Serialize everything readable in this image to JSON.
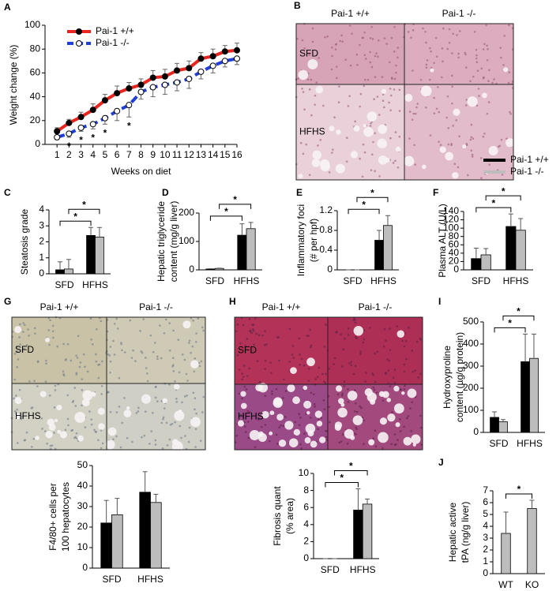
{
  "micrographs": [
    {
      "panel": "B",
      "columns": [
        "Pai-1 +/+",
        "Pai-1 -/-"
      ],
      "rows": [
        "SFD",
        "HFHS"
      ]
    },
    {
      "panel": "G",
      "columns": [
        "Pai-1 +/+",
        "Pai-1 -/-"
      ],
      "rows": [
        "SFD",
        "HFHS"
      ]
    },
    {
      "panel": "H",
      "columns": [
        "Pai-1 +/+",
        "Pai-1 -/-"
      ],
      "rows": [
        "SFD",
        "HFHS"
      ]
    }
  ],
  "chart_data": [
    {
      "panel": "A",
      "type": "line",
      "xlabel": "Weeks on diet",
      "ylabel": [
        "Weight change (%)"
      ],
      "x": [
        1,
        2,
        3,
        4,
        5,
        6,
        7,
        8,
        9,
        10,
        11,
        12,
        13,
        14,
        15,
        16
      ],
      "xlim": [
        0,
        16
      ],
      "xticks": [
        1,
        2,
        3,
        4,
        5,
        6,
        7,
        8,
        9,
        10,
        11,
        12,
        13,
        14,
        15,
        16
      ],
      "ylim": [
        0,
        100
      ],
      "yticks": [
        0,
        20,
        40,
        60,
        80,
        100
      ],
      "legend": "upper left",
      "series": [
        {
          "name": "Pai-1 +/+",
          "color": "#e8261f",
          "marker_fill": "#000000",
          "dashed": false,
          "error_direction": "up",
          "values": [
            11,
            18,
            23,
            29,
            37,
            43,
            47,
            50,
            56,
            57,
            62,
            64,
            72,
            74,
            78,
            79
          ],
          "errors": [
            3,
            3,
            4,
            5,
            5,
            6,
            5,
            5,
            6,
            6,
            6,
            6,
            5,
            6,
            5,
            6
          ]
        },
        {
          "name": "Pai-1 -/-",
          "color": "#1f3fd6",
          "marker_fill": "#ffffff",
          "dashed": true,
          "error_direction": "down",
          "values": [
            6,
            9,
            14,
            17,
            22,
            28,
            33,
            44,
            48,
            50,
            52,
            55,
            61,
            66,
            70,
            72
          ],
          "errors": [
            2,
            3,
            3,
            4,
            5,
            8,
            10,
            6,
            8,
            8,
            7,
            8,
            6,
            6,
            5,
            5
          ]
        }
      ],
      "annotations": [
        {
          "text": "*",
          "x": 2
        },
        {
          "text": "*",
          "x": 3
        },
        {
          "text": "*",
          "x": 4
        },
        {
          "text": "*",
          "x": 5
        },
        {
          "text": "*",
          "x": 7
        }
      ]
    },
    {
      "panel": "C",
      "type": "bar",
      "ylabel": [
        "Steatosis grade"
      ],
      "categories": [
        "SFD",
        "HFHS"
      ],
      "ylim": [
        0,
        4
      ],
      "yticks": [
        0,
        1,
        2,
        3,
        4
      ],
      "series": [
        {
          "color": "#000000",
          "values": [
            0.25,
            2.4
          ],
          "errors": [
            0.5,
            0.5
          ]
        },
        {
          "color": "#bdbdbd",
          "values": [
            0.3,
            2.3
          ],
          "errors": [
            0.6,
            0.6
          ]
        }
      ],
      "annotations": [
        "*",
        "*"
      ]
    },
    {
      "panel": "D",
      "type": "bar",
      "ylabel": [
        "Hepatic triglyceride",
        "content (mg/g liver)"
      ],
      "categories": [
        "SFD",
        "HFHS"
      ],
      "ylim": [
        0,
        200
      ],
      "yticks": [
        0,
        100,
        200
      ],
      "series": [
        {
          "color": "#000000",
          "values": [
            3,
            122
          ],
          "errors": [
            1,
            40
          ]
        },
        {
          "color": "#bdbdbd",
          "values": [
            5,
            145
          ],
          "errors": [
            1,
            22
          ]
        }
      ],
      "annotations": [
        "*",
        "*"
      ]
    },
    {
      "panel": "E",
      "type": "bar",
      "ylabel": [
        "Inflammatory foci",
        "(# per hpf)"
      ],
      "categories": [
        "SFD",
        "HFHS"
      ],
      "ylim": [
        0,
        1.2
      ],
      "yticks": [
        0,
        0.4,
        0.8,
        1.2
      ],
      "series": [
        {
          "color": "#000000",
          "values": [
            0,
            0.6
          ],
          "errors": [
            0,
            0.2
          ]
        },
        {
          "color": "#bdbdbd",
          "values": [
            0,
            0.9
          ],
          "errors": [
            0,
            0.2
          ]
        }
      ],
      "annotations": [
        "*",
        "*"
      ]
    },
    {
      "panel": "F",
      "type": "bar",
      "ylabel": [
        "Plasma ALT (U/L)"
      ],
      "categories": [
        "SFD",
        "HFHS"
      ],
      "ylim": [
        0,
        140
      ],
      "yticks": [
        0,
        20,
        40,
        60,
        80,
        100,
        120,
        140
      ],
      "series": [
        {
          "name": "Pai-1 +/+",
          "color": "#000000",
          "values": [
            27,
            104
          ],
          "errors": [
            25,
            30
          ]
        },
        {
          "name": "Pai-1 -/-",
          "color": "#bdbdbd",
          "values": [
            36,
            95
          ],
          "errors": [
            15,
            28
          ]
        }
      ],
      "annotations": [
        "*",
        "*"
      ]
    },
    {
      "type": "bar",
      "ylabel": [
        "F4/80+ cells per",
        "100 hepatocytes"
      ],
      "categories": [
        "SFD",
        "HFHS"
      ],
      "ylim": [
        0,
        50
      ],
      "yticks": [
        0,
        10,
        20,
        30,
        40,
        50
      ],
      "series": [
        {
          "color": "#000000",
          "values": [
            22,
            37
          ],
          "errors": [
            11,
            10
          ]
        },
        {
          "color": "#bdbdbd",
          "values": [
            26,
            32
          ],
          "errors": [
            8,
            4
          ]
        }
      ],
      "annotations": []
    },
    {
      "type": "bar",
      "ylabel": [
        "Fibrosis quant",
        "(% area)"
      ],
      "categories": [
        "SFD",
        "HFHS"
      ],
      "ylim": [
        0,
        10
      ],
      "yticks": [
        0,
        2,
        4,
        6,
        8,
        10
      ],
      "series": [
        {
          "color": "#000000",
          "values": [
            0,
            5.7
          ],
          "errors": [
            0,
            2.5
          ]
        },
        {
          "color": "#bdbdbd",
          "values": [
            0,
            6.4
          ],
          "errors": [
            0,
            0.6
          ]
        }
      ],
      "annotations": [
        "*",
        "*"
      ]
    },
    {
      "panel": "I",
      "type": "bar",
      "ylabel": [
        "Hydroxyproline",
        "content (µg/g protein)"
      ],
      "categories": [
        "SFD",
        "HFHS"
      ],
      "ylim": [
        0,
        500
      ],
      "yticks": [
        0,
        100,
        200,
        300,
        400,
        500
      ],
      "series": [
        {
          "color": "#000000",
          "values": [
            68,
            320
          ],
          "errors": [
            25,
            125
          ]
        },
        {
          "color": "#bdbdbd",
          "values": [
            48,
            335
          ],
          "errors": [
            10,
            110
          ]
        }
      ],
      "annotations": [
        "*",
        "*"
      ]
    },
    {
      "panel": "J",
      "type": "bar",
      "ylabel": [
        "Hepatic active",
        "tPA (ng/g liver)"
      ],
      "categories": [
        "WT",
        "KO"
      ],
      "ylim": [
        0,
        7
      ],
      "yticks": [
        0,
        1,
        2,
        3,
        4,
        5,
        6,
        7
      ],
      "series": [
        {
          "color": "#bdbdbd",
          "values": [
            3.4,
            5.5
          ],
          "errors": [
            1.8,
            0.7
          ]
        }
      ],
      "annotations": [
        "*"
      ]
    }
  ]
}
